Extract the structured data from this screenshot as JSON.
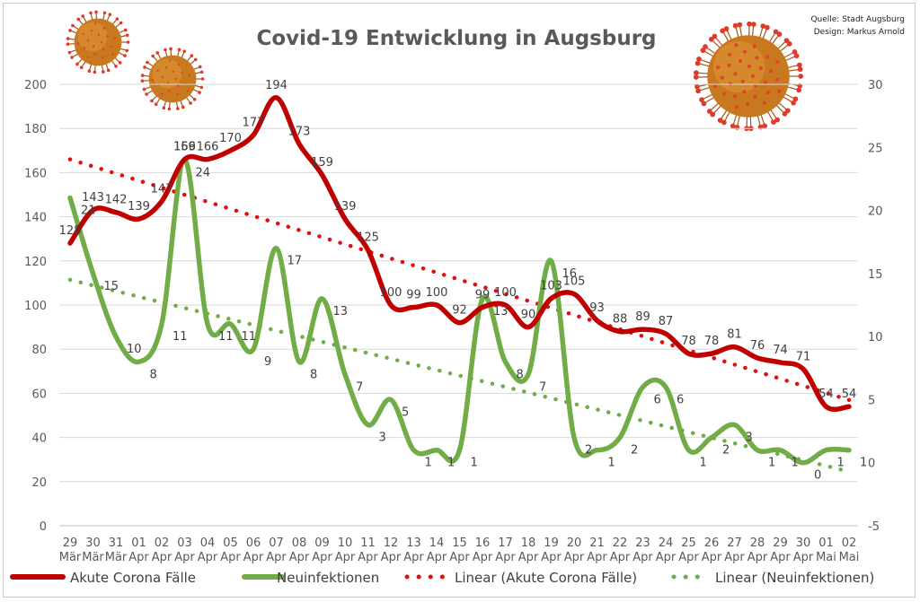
{
  "chart_data": {
    "type": "line",
    "title": "Covid-19 Entwicklung in Augsburg",
    "source_lines": [
      "Quelle: Stadt Augsburg",
      "Design: Markus Arnold"
    ],
    "categories": [
      [
        "29",
        "Mär"
      ],
      [
        "30",
        "Mär"
      ],
      [
        "31",
        "Mär"
      ],
      [
        "01",
        "Apr"
      ],
      [
        "02",
        "Apr"
      ],
      [
        "03",
        "Apr"
      ],
      [
        "04",
        "Apr"
      ],
      [
        "05",
        "Apr"
      ],
      [
        "06",
        "Apr"
      ],
      [
        "07",
        "Apr"
      ],
      [
        "08",
        "Apr"
      ],
      [
        "09",
        "Apr"
      ],
      [
        "10",
        "Apr"
      ],
      [
        "11",
        "Apr"
      ],
      [
        "12",
        "Apr"
      ],
      [
        "13",
        "Apr"
      ],
      [
        "14",
        "Apr"
      ],
      [
        "15",
        "Apr"
      ],
      [
        "16",
        "Apr"
      ],
      [
        "17",
        "Apr"
      ],
      [
        "18",
        "Apr"
      ],
      [
        "19",
        "Apr"
      ],
      [
        "20",
        "Apr"
      ],
      [
        "21",
        "Apr"
      ],
      [
        "22",
        "Apr"
      ],
      [
        "23",
        "Apr"
      ],
      [
        "24",
        "Apr"
      ],
      [
        "25",
        "Apr"
      ],
      [
        "26",
        "Apr"
      ],
      [
        "27",
        "Apr"
      ],
      [
        "28",
        "Apr"
      ],
      [
        "29",
        "Apr"
      ],
      [
        "30",
        "Apr"
      ],
      [
        "01",
        "Mai"
      ],
      [
        "02",
        "Mai"
      ]
    ],
    "y_left": {
      "min": 0,
      "max": 200,
      "step": 20
    },
    "y_right": {
      "min": -5,
      "max": 30,
      "step": 5
    },
    "grid": true,
    "legend_position": "bottom",
    "series": [
      {
        "name": "Akute Corona Fälle",
        "axis": "left",
        "color": "#c00000",
        "style": "line",
        "values": [
          128,
          143,
          142,
          139,
          147,
          166,
          166,
          170,
          177,
          194,
          173,
          159,
          139,
          125,
          100,
          99,
          100,
          92,
          99,
          100,
          90,
          103,
          105,
          93,
          88,
          89,
          87,
          78,
          78,
          81,
          76,
          74,
          71,
          54,
          54
        ],
        "labels": [
          "128",
          "143",
          "142",
          "139",
          "147",
          "166",
          "166",
          "170",
          "177",
          "194",
          "173",
          "159",
          "139",
          "125",
          "100",
          "99",
          "100",
          "92",
          "99",
          "100",
          "90",
          "103",
          "105",
          "93",
          "88",
          "89",
          "87",
          "78",
          "78",
          "81",
          "76",
          "74",
          "71",
          "54",
          "54"
        ]
      },
      {
        "name": "Neuinfektionen",
        "axis": "right",
        "color": "#70ad47",
        "style": "line",
        "values": [
          21,
          15,
          10,
          8,
          11,
          24,
          11,
          11,
          9,
          17,
          8,
          13,
          7,
          3,
          5,
          1,
          1,
          1,
          13,
          8,
          7,
          16,
          2,
          1,
          2,
          6,
          6,
          1,
          2,
          3,
          1,
          1,
          0,
          1,
          1
        ],
        "labels": [
          "21",
          "15",
          "10",
          "8",
          "11",
          "24",
          "11",
          "11",
          "9",
          "17",
          "8",
          "13",
          "7",
          "3",
          "5",
          "1",
          "1",
          "1",
          "13",
          "8",
          "7",
          "16",
          "2",
          "1",
          "2",
          "6",
          "6",
          "1",
          "2",
          "3",
          "1",
          "1",
          "0",
          "1",
          "1"
        ]
      },
      {
        "name": "Linear (Akute Corona Fälle)",
        "axis": "left",
        "color": "#e01010",
        "style": "trend",
        "start": 166,
        "end": 57
      },
      {
        "name": "Linear (Neuinfektionen)",
        "axis": "right",
        "color": "#70ad47",
        "style": "trend",
        "start": 14.5,
        "end": -0.7
      }
    ],
    "extra_labels": [
      {
        "index": 5,
        "text": "159"
      }
    ]
  },
  "decor": {
    "virus_icons": [
      "virus-icon",
      "virus-icon",
      "virus-icon"
    ],
    "virus_color": "#c8781f",
    "spike_color": "#e03a2a"
  }
}
